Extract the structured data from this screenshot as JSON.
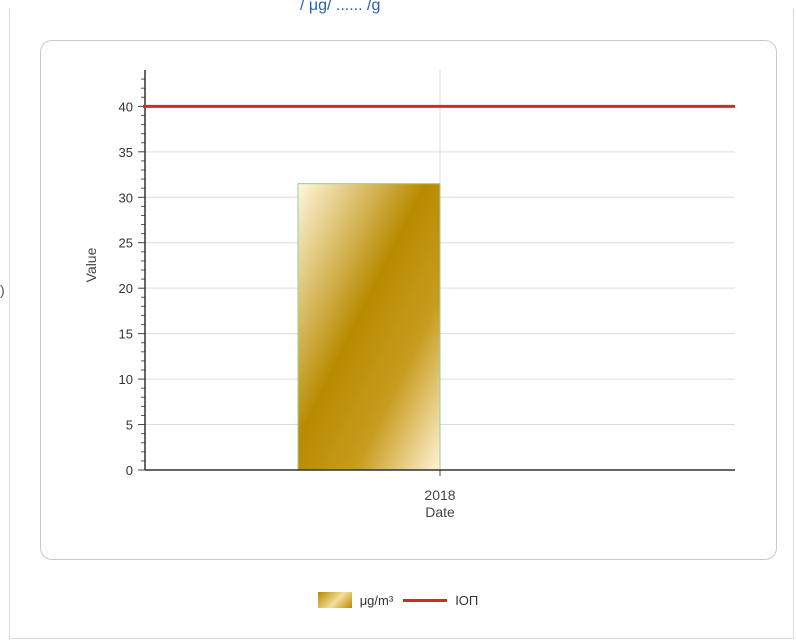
{
  "header": {
    "title_fragment": "/ μg/ ...... /g"
  },
  "chart_data": {
    "type": "bar",
    "categories": [
      "2018"
    ],
    "xlabel": "Date",
    "ylabel": "Value",
    "ylim": [
      0,
      44
    ],
    "y_ticks": [
      0,
      5,
      10,
      15,
      20,
      25,
      30,
      35,
      40
    ],
    "grid": true,
    "series": [
      {
        "name": "μg/m³",
        "type": "bar",
        "values": [
          31.5
        ],
        "color": "#c09a00"
      },
      {
        "name": "ΙΟΠ",
        "type": "line",
        "values": [
          40
        ],
        "color": "#d02a2a"
      }
    ],
    "legend_position": "bottom"
  },
  "legend": {
    "bar_label": "μg/m³",
    "line_label": "ΙΟΠ"
  },
  "left_glyph": ")"
}
